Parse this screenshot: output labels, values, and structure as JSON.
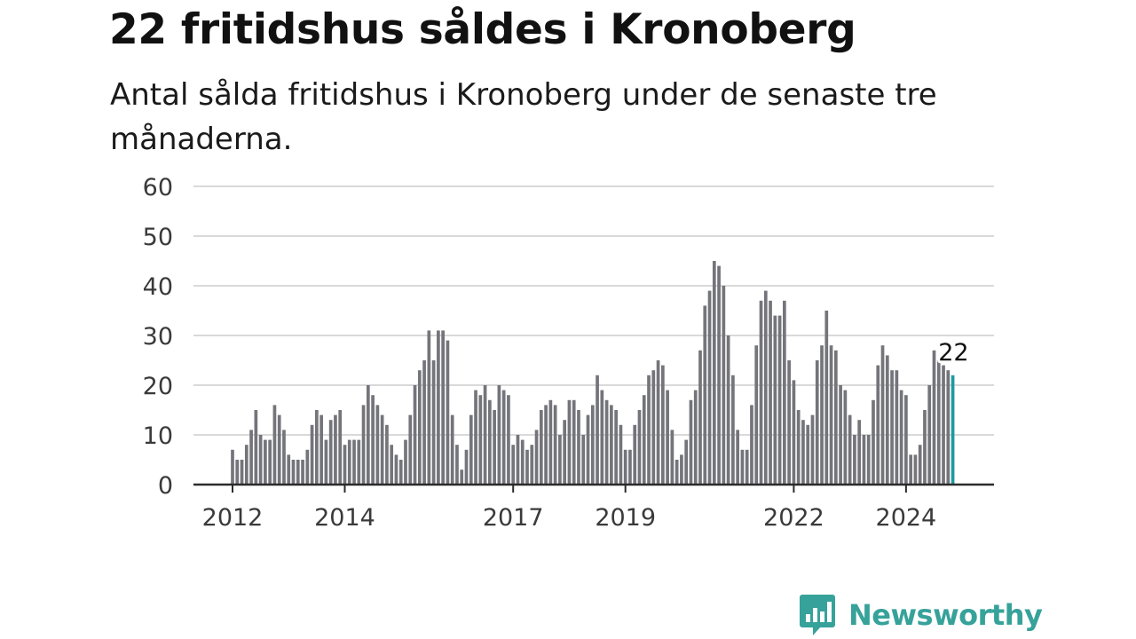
{
  "title": "22 fritidshus såldes i Kronoberg",
  "subtitle": "Antal sålda fritidshus i Kronoberg under de senaste tre månaderna.",
  "brand": {
    "name": "Newsworthy",
    "color": "#36a29a"
  },
  "colors": {
    "bar": "#74747b",
    "highlight": "#1f9aa0",
    "grid": "#d9d9d9"
  },
  "chart_data": {
    "type": "bar",
    "title": "22 fritidshus såldes i Kronoberg",
    "xlabel": "",
    "ylabel": "",
    "ylim": [
      0,
      60
    ],
    "yticks": [
      0,
      10,
      20,
      30,
      40,
      50,
      60
    ],
    "xticks": [
      "2012",
      "2014",
      "2017",
      "2019",
      "2022",
      "2024"
    ],
    "grid": true,
    "start": "2012-01",
    "values": [
      7,
      5,
      5,
      8,
      11,
      15,
      10,
      9,
      9,
      16,
      14,
      11,
      6,
      5,
      5,
      5,
      7,
      12,
      15,
      14,
      9,
      13,
      14,
      15,
      8,
      9,
      9,
      9,
      16,
      20,
      18,
      16,
      14,
      12,
      8,
      6,
      5,
      9,
      14,
      20,
      23,
      25,
      31,
      25,
      31,
      31,
      29,
      14,
      8,
      3,
      7,
      14,
      19,
      18,
      20,
      17,
      15,
      20,
      19,
      18,
      8,
      10,
      9,
      7,
      8,
      11,
      15,
      16,
      17,
      16,
      10,
      13,
      17,
      17,
      15,
      10,
      14,
      16,
      22,
      19,
      17,
      16,
      15,
      12,
      7,
      7,
      12,
      15,
      18,
      22,
      23,
      25,
      24,
      19,
      11,
      5,
      6,
      9,
      17,
      19,
      27,
      36,
      39,
      45,
      44,
      40,
      30,
      22,
      11,
      7,
      7,
      16,
      28,
      37,
      39,
      37,
      34,
      34,
      37,
      25,
      21,
      15,
      13,
      12,
      14,
      25,
      28,
      35,
      28,
      27,
      20,
      19,
      14,
      10,
      13,
      10,
      10,
      17,
      24,
      28,
      26,
      23,
      23,
      19,
      18,
      6,
      6,
      8,
      15,
      20,
      27,
      25,
      24,
      23,
      22
    ],
    "highlight": {
      "label": "22",
      "value": 22
    }
  }
}
